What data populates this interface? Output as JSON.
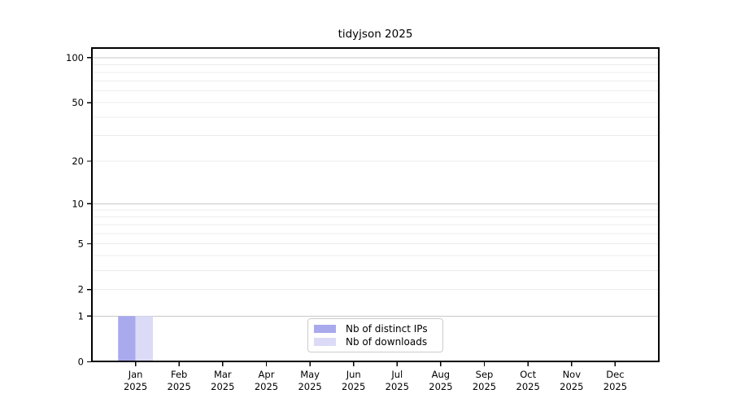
{
  "chart_data": {
    "type": "bar",
    "title": "tidyjson 2025",
    "x": {
      "months": [
        "Jan",
        "Feb",
        "Mar",
        "Apr",
        "May",
        "Jun",
        "Jul",
        "Aug",
        "Sep",
        "Oct",
        "Nov",
        "Dec"
      ],
      "year": "2025"
    },
    "series": [
      {
        "name": "Nb of distinct IPs",
        "color": "#a9a9ee",
        "values": [
          1,
          0,
          0,
          0,
          0,
          0,
          0,
          0,
          0,
          0,
          0,
          0
        ]
      },
      {
        "name": "Nb of downloads",
        "color": "#dbdbf7",
        "values": [
          1,
          0,
          0,
          0,
          0,
          0,
          0,
          0,
          0,
          0,
          0,
          0
        ]
      }
    ],
    "y_axis": {
      "scale": "log1p",
      "tick_labels": [
        "0",
        "1",
        "2",
        "5",
        "10",
        "20",
        "50",
        "100"
      ],
      "tick_values": [
        0,
        1,
        2,
        5,
        10,
        20,
        50,
        100
      ],
      "major_grid_values": [
        1,
        10,
        100
      ],
      "minor_grid_values": [
        2,
        3,
        4,
        5,
        6,
        7,
        8,
        9,
        20,
        30,
        40,
        50,
        60,
        70,
        80,
        90
      ],
      "ylim": [
        0,
        116
      ]
    },
    "legend": {
      "position": "lower center",
      "entries": [
        "Nb of distinct IPs",
        "Nb of downloads"
      ]
    },
    "grid": "horizontal",
    "colors": {
      "major_grid": "#c8c8c8",
      "minor_grid": "#ececec",
      "spine": "#000000",
      "text": "#000000",
      "background": "#ffffff"
    }
  }
}
